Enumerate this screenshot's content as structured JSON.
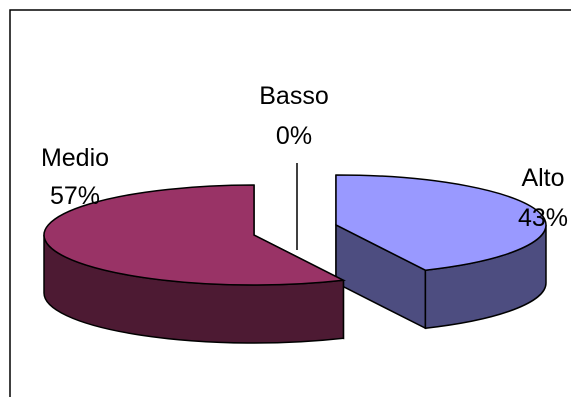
{
  "chart_data": {
    "type": "pie",
    "style": "3d-exploded",
    "title": "",
    "categories": [
      "Alto",
      "Basso",
      "Medio"
    ],
    "values": [
      43,
      0,
      57
    ],
    "labels": [
      {
        "name": "Alto",
        "pct": "43%"
      },
      {
        "name": "Basso",
        "pct": "0%"
      },
      {
        "name": "Medio",
        "pct": "57%"
      }
    ],
    "colors": {
      "Alto": {
        "top": "#9999ff",
        "side": "#4d4d80"
      },
      "Basso": {
        "top": "#ffffcc",
        "side": "#80806a"
      },
      "Medio": {
        "top": "#993366",
        "side": "#4d1a33"
      }
    },
    "legend": "none"
  }
}
